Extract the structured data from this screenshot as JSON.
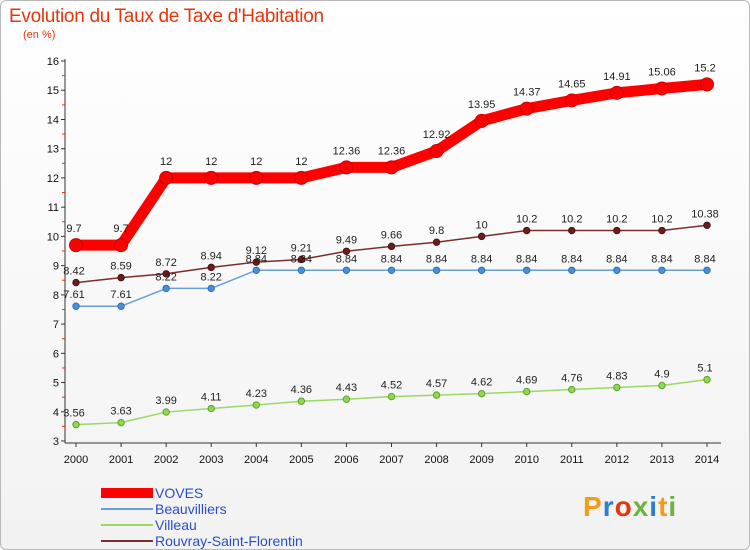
{
  "header": {
    "title": "Evolution du Taux de Taxe d'Habitation",
    "subtitle": "(en %)"
  },
  "logo": {
    "letters": [
      "P",
      "r",
      "o",
      "x",
      "i",
      "t",
      "i"
    ],
    "colors": [
      "#f59b1c",
      "#2a7fd4",
      "#e8360c",
      "#6cb33f",
      "#2a7fd4",
      "#f59b1c",
      "#6cb33f"
    ]
  },
  "chart_data": {
    "type": "line",
    "title": "Evolution du Taux de Taxe d'Habitation",
    "subtitle": "(en %)",
    "xlabel": "",
    "ylabel": "",
    "x": [
      "2000",
      "2001",
      "2002",
      "2003",
      "2004",
      "2005",
      "2006",
      "2007",
      "2008",
      "2009",
      "2010",
      "2011",
      "2012",
      "2013",
      "2014"
    ],
    "ylim": [
      3,
      16
    ],
    "yticks": [
      3,
      4,
      5,
      6,
      7,
      8,
      9,
      10,
      11,
      12,
      13,
      14,
      15,
      16
    ],
    "grid": false,
    "legend_position": "bottom-left",
    "series": [
      {
        "name": "VOVES",
        "color": "#ff0000",
        "values": [
          9.7,
          9.7,
          12,
          12,
          12,
          12,
          12.36,
          12.36,
          12.92,
          13.95,
          14.37,
          14.65,
          14.91,
          15.06,
          15.2
        ],
        "labels": [
          "9.7",
          "9.7",
          "12",
          "12",
          "12",
          "12",
          "12.36",
          "12.36",
          "12.92",
          "13.95",
          "14.37",
          "14.65",
          "14.91",
          "15.06",
          "15.2"
        ]
      },
      {
        "name": "Beauvilliers",
        "color": "#6a9fd6",
        "values": [
          7.61,
          7.61,
          8.22,
          8.22,
          8.84,
          8.84,
          8.84,
          8.84,
          8.84,
          8.84,
          8.84,
          8.84,
          8.84,
          8.84,
          8.84
        ],
        "labels": [
          "7.61",
          "7.61",
          "8.22",
          "8.22",
          "8.84",
          "8.84",
          "8.84",
          "8.84",
          "8.84",
          "8.84",
          "8.84",
          "8.84",
          "8.84",
          "8.84",
          "8.84"
        ]
      },
      {
        "name": "Villeau",
        "color": "#9ad86a",
        "values": [
          3.56,
          3.63,
          3.99,
          4.11,
          4.23,
          4.36,
          4.43,
          4.52,
          4.57,
          4.62,
          4.69,
          4.76,
          4.83,
          4.9,
          5.1
        ],
        "labels": [
          "3.56",
          "3.63",
          "3.99",
          "4.11",
          "4.23",
          "4.36",
          "4.43",
          "4.52",
          "4.57",
          "4.62",
          "4.69",
          "4.76",
          "4.83",
          "4.9",
          "5.1"
        ]
      },
      {
        "name": "Rouvray-Saint-Florentin",
        "color": "#7b2e2e",
        "values": [
          8.42,
          8.59,
          8.72,
          8.94,
          9.12,
          9.21,
          9.49,
          9.66,
          9.8,
          10,
          10.2,
          10.2,
          10.2,
          10.2,
          10.38
        ],
        "labels": [
          "8.42",
          "8.59",
          "8.72",
          "8.94",
          "9.12",
          "9.21",
          "9.49",
          "9.66",
          "9.8",
          "10",
          "10.2",
          "10.2",
          "10.2",
          "10.2",
          "10.38"
        ]
      }
    ]
  }
}
